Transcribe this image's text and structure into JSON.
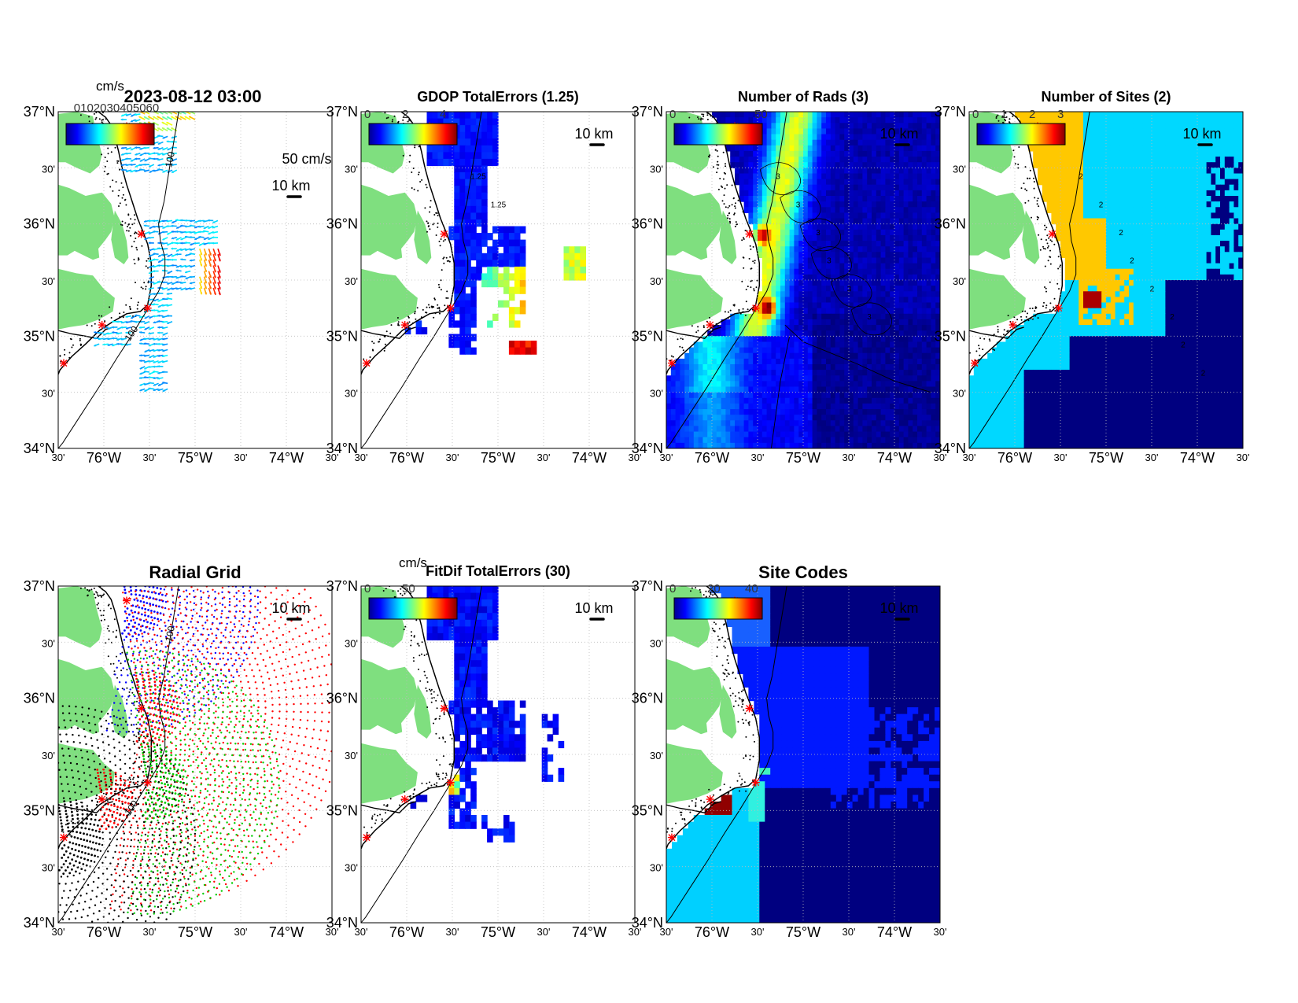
{
  "figure": {
    "timestamp": "2023-08-12 03:00",
    "vector_scale_label": "50 cm/s",
    "colorbar_unit": "cm/s",
    "vector_colorbar_ticks_garbled": "0102030405060",
    "scale_bar_label": "10 km",
    "isobath_label": "100",
    "colors": {
      "land": "#7fdf7f",
      "site_marker": "#ff0000",
      "coast": "#000000"
    }
  },
  "axes": {
    "lat_ticks": [
      "37°N",
      "30'",
      "36°N",
      "30'",
      "35°N",
      "30'",
      "34°N"
    ],
    "lon_ticks": [
      "30'",
      "76°W",
      "30'",
      "75°W",
      "30'",
      "74°W",
      "30'"
    ],
    "lat_range": [
      34,
      37
    ],
    "lon_range": [
      -76.5,
      -73.5
    ]
  },
  "panels": [
    {
      "id": "currents",
      "title": "",
      "colorbar_ticks": [],
      "legend_text": "",
      "contours": []
    },
    {
      "id": "gdop",
      "title": "GDOP TotalErrors (1.25)",
      "colorbar_ticks": [
        "0",
        "2",
        "4"
      ],
      "contours": [
        "1.25",
        "1.25"
      ]
    },
    {
      "id": "nrads",
      "title": "Number of Rads (3)",
      "colorbar_ticks": [
        "0",
        "50"
      ],
      "contours": [
        "3",
        "3",
        "3",
        "3",
        "3",
        "3"
      ]
    },
    {
      "id": "nsites",
      "title": "Number of Sites (2)",
      "colorbar_ticks": [
        "0",
        "1",
        "2",
        "3"
      ],
      "contours": [
        "2",
        "2",
        "2",
        "2",
        "2",
        "2",
        "2",
        "2"
      ]
    },
    {
      "id": "radial",
      "title": "Radial Grid",
      "colorbar_ticks": [],
      "contours": []
    },
    {
      "id": "fitdif",
      "title": "FitDif TotalErrors (30)",
      "colorbar_ticks": [
        "0",
        "50"
      ],
      "contours": []
    },
    {
      "id": "sites",
      "title": "Site Codes",
      "colorbar_ticks": [
        "0",
        "20",
        "40"
      ],
      "contours": []
    }
  ],
  "sites": [
    {
      "lon": -75.75,
      "lat": 36.87
    },
    {
      "lon": -75.59,
      "lat": 35.91
    },
    {
      "lon": -75.52,
      "lat": 35.25
    },
    {
      "lon": -76.02,
      "lat": 35.1
    },
    {
      "lon": -76.44,
      "lat": 34.76
    }
  ]
}
